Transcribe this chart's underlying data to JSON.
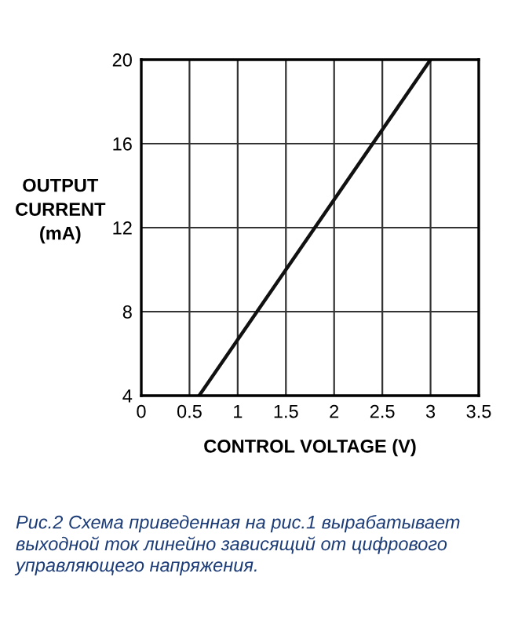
{
  "chart_data": {
    "type": "line",
    "xlabel": "CONTROL VOLTAGE (V)",
    "ylabel": "OUTPUT\nCURRENT\n(mA)",
    "x": [
      0.6,
      3.0
    ],
    "series": [
      {
        "color": "#111111",
        "values": [
          4,
          20
        ]
      }
    ],
    "xlim": [
      0,
      3.5
    ],
    "xticks": [
      0,
      0.5,
      1,
      1.5,
      2,
      2.5,
      3,
      3.5
    ],
    "ylim": [
      4,
      20
    ],
    "yticks": [
      4,
      8,
      12,
      16,
      20
    ],
    "grid": true,
    "annotations": [
      "Рис.2 Схема приведенная на рис.1 вырабатывает выходной ток линейно зависящий от цифрового управляющего напряжения."
    ]
  }
}
